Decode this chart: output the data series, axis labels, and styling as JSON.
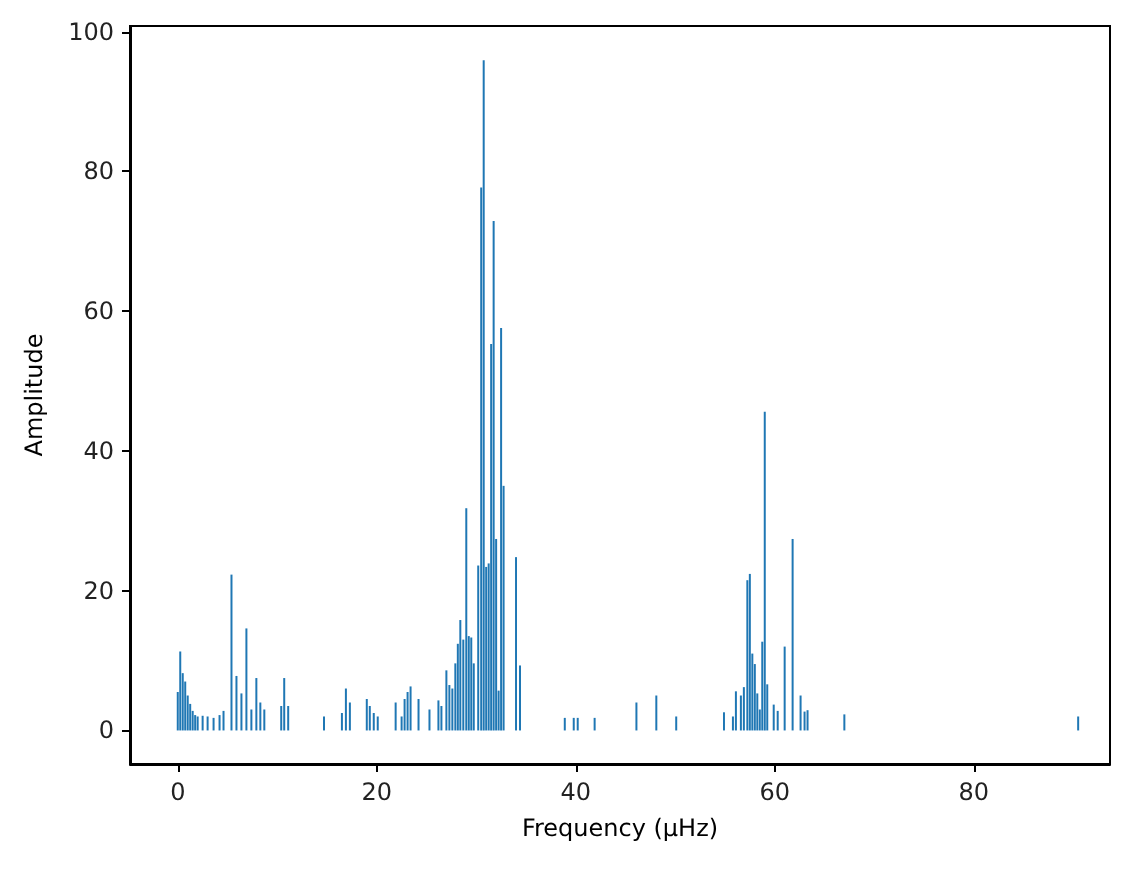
{
  "chart_data": {
    "type": "bar",
    "xlabel": "Frequency (µHz)",
    "ylabel": "Amplitude",
    "color": "#1f77b4",
    "x": [
      0.0,
      0.25,
      0.5,
      0.75,
      1.0,
      1.25,
      1.5,
      1.75,
      2.0,
      2.5,
      3.0,
      3.6,
      4.2,
      4.6,
      5.4,
      5.9,
      6.4,
      6.9,
      7.4,
      7.9,
      8.3,
      8.7,
      10.4,
      10.7,
      11.1,
      14.7,
      16.5,
      16.9,
      17.3,
      19.0,
      19.3,
      19.7,
      20.1,
      21.9,
      22.5,
      22.8,
      23.1,
      23.4,
      24.2,
      25.3,
      26.2,
      26.5,
      27.0,
      27.3,
      27.6,
      27.9,
      28.15,
      28.4,
      28.7,
      29.0,
      29.25,
      29.5,
      29.75,
      30.2,
      30.5,
      30.75,
      31.0,
      31.25,
      31.5,
      31.75,
      32.0,
      32.25,
      32.5,
      32.75,
      34.0,
      34.4,
      38.9,
      39.8,
      40.2,
      41.9,
      46.1,
      48.1,
      50.1,
      54.9,
      55.8,
      56.1,
      56.6,
      56.9,
      57.25,
      57.5,
      57.75,
      58.0,
      58.25,
      58.5,
      58.75,
      59.0,
      59.25,
      59.9,
      60.3,
      61.0,
      61.8,
      62.6,
      63.0,
      63.3,
      67.0,
      90.5
    ],
    "values": [
      5.5,
      11.3,
      8.2,
      7.0,
      5.0,
      3.8,
      2.8,
      2.2,
      2.0,
      2.1,
      2.0,
      1.8,
      2.2,
      2.8,
      22.3,
      7.8,
      5.3,
      14.6,
      3.0,
      7.5,
      4.0,
      3.0,
      3.5,
      7.5,
      3.5,
      2.0,
      2.5,
      6.0,
      4.0,
      4.5,
      3.5,
      2.5,
      2.0,
      4.0,
      2.0,
      4.5,
      5.5,
      6.3,
      4.5,
      3.0,
      4.3,
      3.5,
      8.6,
      6.5,
      6.0,
      9.6,
      12.4,
      15.8,
      13.0,
      31.8,
      13.5,
      13.3,
      9.6,
      23.6,
      77.7,
      95.9,
      23.4,
      23.9,
      55.3,
      72.9,
      27.4,
      5.7,
      57.6,
      35.0,
      24.8,
      9.3,
      1.8,
      1.8,
      1.8,
      1.8,
      4.0,
      5.0,
      2.0,
      2.6,
      2.0,
      5.6,
      5.0,
      6.2,
      21.5,
      22.4,
      11.0,
      9.5,
      5.3,
      3.0,
      12.7,
      45.6,
      6.6,
      3.7,
      2.8,
      12.0,
      27.4,
      5.0,
      2.7,
      2.9,
      2.3,
      2.0
    ],
    "xlim": [
      -4.8,
      93.7
    ],
    "xticks": [
      0,
      20,
      40,
      60,
      80
    ],
    "ylim": [
      -4.8,
      100.8
    ],
    "yticks": [
      0,
      20,
      40,
      60,
      80,
      100
    ]
  }
}
